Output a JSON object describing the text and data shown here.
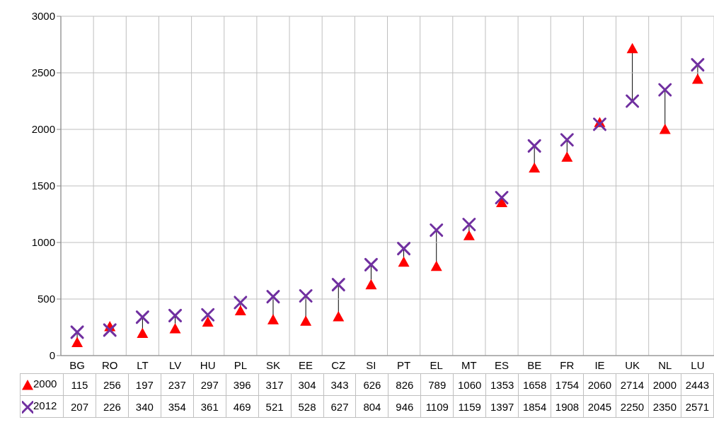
{
  "chart_data": {
    "type": "scatter",
    "categories": [
      "BG",
      "RO",
      "LT",
      "LV",
      "HU",
      "PL",
      "SK",
      "EE",
      "CZ",
      "SI",
      "PT",
      "EL",
      "MT",
      "ES",
      "BE",
      "FR",
      "IE",
      "UK",
      "NL",
      "LU"
    ],
    "series": [
      {
        "name": "2000",
        "color": "#ff0000",
        "marker": "triangle",
        "values": [
          115,
          256,
          197,
          237,
          297,
          396,
          317,
          304,
          343,
          626,
          826,
          789,
          1060,
          1353,
          1658,
          1754,
          2060,
          2714,
          2000,
          2443
        ]
      },
      {
        "name": "2012",
        "color": "#7030a0",
        "marker": "cross",
        "values": [
          207,
          226,
          340,
          354,
          361,
          469,
          521,
          528,
          627,
          804,
          946,
          1109,
          1159,
          1397,
          1854,
          1908,
          2045,
          2250,
          2350,
          2571
        ]
      }
    ],
    "ylim": [
      0,
      3000
    ],
    "yticks": [
      0,
      500,
      1000,
      1500,
      2000,
      2500,
      3000
    ],
    "grid": true,
    "legend": "bottom",
    "data_labels": true
  }
}
